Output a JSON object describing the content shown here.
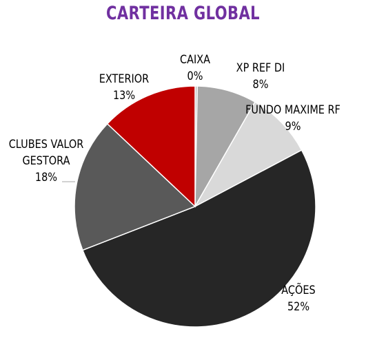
{
  "chart_data": {
    "type": "pie",
    "title": "CARTEIRA GLOBAL",
    "title_color": "#7030A0",
    "slices": [
      {
        "label_lines": [
          "CAIXA"
        ],
        "percent_label": "0%",
        "value": 0.3,
        "color": "#BFBFBF"
      },
      {
        "label_lines": [
          "XP REF DI"
        ],
        "percent_label": "8%",
        "value": 8,
        "color": "#A6A6A6"
      },
      {
        "label_lines": [
          "FUNDO MAXIME RF"
        ],
        "percent_label": "9%",
        "value": 9,
        "color": "#D9D9D9"
      },
      {
        "label_lines": [
          "AÇÕES"
        ],
        "percent_label": "52%",
        "value": 52,
        "color": "#262626"
      },
      {
        "label_lines": [
          "CLUBES VALOR",
          "GESTORA"
        ],
        "percent_label": "18%",
        "value": 18,
        "color": "#595959"
      },
      {
        "label_lines": [
          "EXTERIOR"
        ],
        "percent_label": "13%",
        "value": 13,
        "color": "#C00000"
      }
    ]
  }
}
